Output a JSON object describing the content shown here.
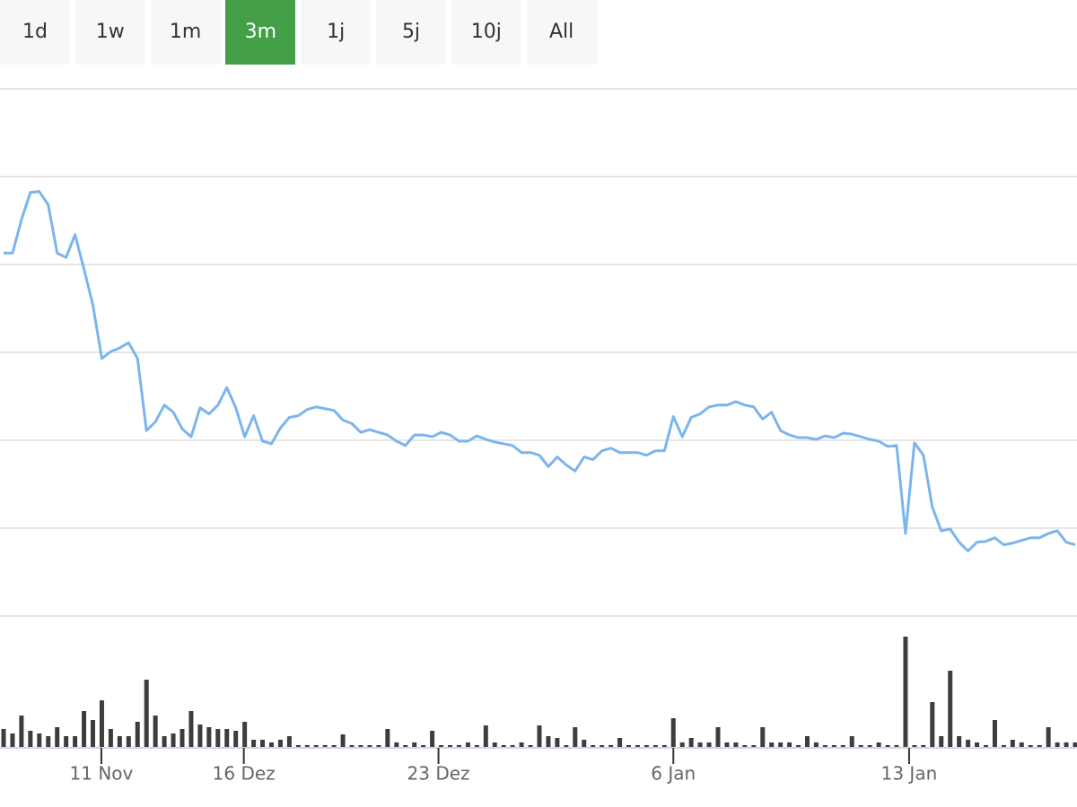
{
  "buttons": [
    {
      "label": "1d"
    },
    {
      "label": "1w"
    },
    {
      "label": "1m"
    },
    {
      "label": "3m",
      "active": true
    },
    {
      "label": "1j"
    },
    {
      "label": "5j"
    },
    {
      "label": "10j"
    },
    {
      "label": "All"
    }
  ],
  "chart_data": [
    {
      "type": "line",
      "color": "#7cb5ec",
      "xlim": [
        0,
        120
      ],
      "ylim": [
        0,
        6
      ],
      "yticks": [
        0,
        1,
        2,
        3,
        4,
        5,
        6
      ],
      "grid": true,
      "values": [
        4.13,
        4.13,
        4.51,
        4.82,
        4.83,
        4.68,
        4.13,
        4.08,
        4.34,
        3.95,
        3.54,
        2.93,
        3.01,
        3.05,
        3.11,
        2.93,
        2.11,
        2.21,
        2.4,
        2.32,
        2.13,
        2.04,
        2.37,
        2.3,
        2.4,
        2.6,
        2.37,
        2.04,
        2.28,
        1.99,
        1.96,
        2.14,
        2.26,
        2.28,
        2.35,
        2.38,
        2.36,
        2.34,
        2.23,
        2.19,
        2.09,
        2.12,
        2.09,
        2.06,
        1.99,
        1.94,
        2.06,
        2.06,
        2.04,
        2.09,
        2.06,
        1.99,
        1.99,
        2.05,
        2.01,
        1.98,
        1.96,
        1.94,
        1.86,
        1.86,
        1.83,
        1.7,
        1.81,
        1.72,
        1.65,
        1.81,
        1.78,
        1.88,
        1.91,
        1.86,
        1.86,
        1.86,
        1.83,
        1.88,
        1.88,
        2.27,
        2.04,
        2.26,
        2.3,
        2.38,
        2.4,
        2.4,
        2.44,
        2.4,
        2.38,
        2.24,
        2.32,
        2.11,
        2.06,
        2.03,
        2.03,
        2.01,
        2.05,
        2.03,
        2.08,
        2.07,
        2.04,
        2.01,
        1.99,
        1.93,
        1.94,
        0.94,
        1.97,
        1.83,
        1.24,
        0.97,
        0.99,
        0.84,
        0.74,
        0.84,
        0.85,
        0.89,
        0.81,
        0.83,
        0.86,
        0.89,
        0.89,
        0.94,
        0.97,
        0.84,
        0.81
      ]
    },
    {
      "type": "bar",
      "color": "#3d3d3d",
      "xlim": [
        0,
        120
      ],
      "ylim": [
        0,
        146
      ],
      "xticks": [
        {
          "value": 10.95,
          "label": "11 Nov"
        },
        {
          "value": 26.9,
          "label": "16 Dez"
        },
        {
          "value": 48.7,
          "label": "23 Dez"
        },
        {
          "value": 75,
          "label": "6 Jan"
        },
        {
          "value": 101.4,
          "label": "13 Jan"
        }
      ],
      "values": [
        20,
        15,
        35,
        18,
        15,
        12,
        22,
        12,
        12,
        40,
        30,
        52,
        20,
        12,
        12,
        28,
        75,
        35,
        12,
        15,
        20,
        40,
        25,
        22,
        20,
        20,
        18,
        28,
        8,
        8,
        5,
        8,
        12,
        2,
        2,
        2,
        2,
        2,
        14,
        2,
        2,
        2,
        2,
        20,
        5,
        2,
        5,
        2,
        18,
        2,
        2,
        2,
        5,
        2,
        24,
        5,
        2,
        2,
        5,
        2,
        24,
        12,
        10,
        2,
        22,
        8,
        2,
        2,
        2,
        10,
        2,
        2,
        2,
        2,
        2,
        32,
        5,
        10,
        5,
        5,
        22,
        5,
        5,
        2,
        2,
        22,
        5,
        5,
        5,
        2,
        12,
        5,
        2,
        2,
        2,
        12,
        2,
        2,
        5,
        2,
        2,
        123,
        2,
        2,
        50,
        12,
        85,
        12,
        8,
        5,
        2,
        30,
        2,
        8,
        5,
        2,
        2,
        22,
        5,
        5,
        5
      ]
    }
  ]
}
